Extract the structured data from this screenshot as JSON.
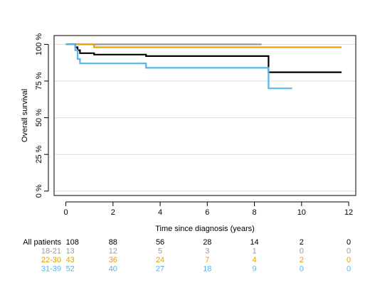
{
  "chart_data": {
    "type": "line",
    "xlabel": "Time since diagnosis (years)",
    "ylabel": "Overall survival",
    "xlim": [
      -0.5,
      12.3
    ],
    "ylim": [
      -3,
      106
    ],
    "x_ticks": [
      "0",
      "2",
      "4",
      "6",
      "8",
      "10",
      "12"
    ],
    "y_ticks": [
      "0 %",
      "25 %",
      "50 %",
      "75 %",
      "100 %"
    ],
    "grid": "horizontal",
    "series": [
      {
        "color": "#999999",
        "points": [
          [
            0,
            100
          ],
          [
            8.3,
            100
          ]
        ]
      },
      {
        "color": "#E69F00",
        "points": [
          [
            0,
            100
          ],
          [
            1.2,
            100
          ],
          [
            1.2,
            98
          ],
          [
            11.7,
            98
          ]
        ]
      },
      {
        "color": "#000000",
        "points": [
          [
            0,
            100
          ],
          [
            0.4,
            100
          ],
          [
            0.4,
            98
          ],
          [
            0.5,
            98
          ],
          [
            0.5,
            96
          ],
          [
            0.6,
            96
          ],
          [
            0.6,
            94
          ],
          [
            1.2,
            94
          ],
          [
            1.2,
            93
          ],
          [
            3.4,
            93
          ],
          [
            3.4,
            92
          ],
          [
            8.6,
            92
          ],
          [
            8.6,
            81
          ],
          [
            11.7,
            81
          ]
        ]
      },
      {
        "color": "#56B4E9",
        "points": [
          [
            0,
            100
          ],
          [
            0.4,
            100
          ],
          [
            0.4,
            96
          ],
          [
            0.5,
            96
          ],
          [
            0.5,
            90
          ],
          [
            0.6,
            90
          ],
          [
            0.6,
            87
          ],
          [
            3.4,
            87
          ],
          [
            3.4,
            84
          ],
          [
            8.6,
            84
          ],
          [
            8.6,
            70
          ],
          [
            9.6,
            70
          ]
        ]
      }
    ],
    "risk_table": {
      "time_points": [
        0,
        2,
        4,
        6,
        8,
        10,
        12
      ],
      "rows": [
        {
          "label": "All patients",
          "color": "#000000",
          "values": [
            "108",
            "88",
            "56",
            "28",
            "14",
            "2",
            "0"
          ]
        },
        {
          "label": "18-21",
          "color": "#999999",
          "values": [
            "13",
            "12",
            "5",
            "3",
            "1",
            "0",
            "0"
          ]
        },
        {
          "label": "22-30",
          "color": "#E69F00",
          "values": [
            "43",
            "36",
            "24",
            "7",
            "4",
            "2",
            "0"
          ]
        },
        {
          "label": "31-39",
          "color": "#56B4E9",
          "values": [
            "52",
            "40",
            "27",
            "18",
            "9",
            "0",
            "0"
          ]
        }
      ]
    }
  }
}
